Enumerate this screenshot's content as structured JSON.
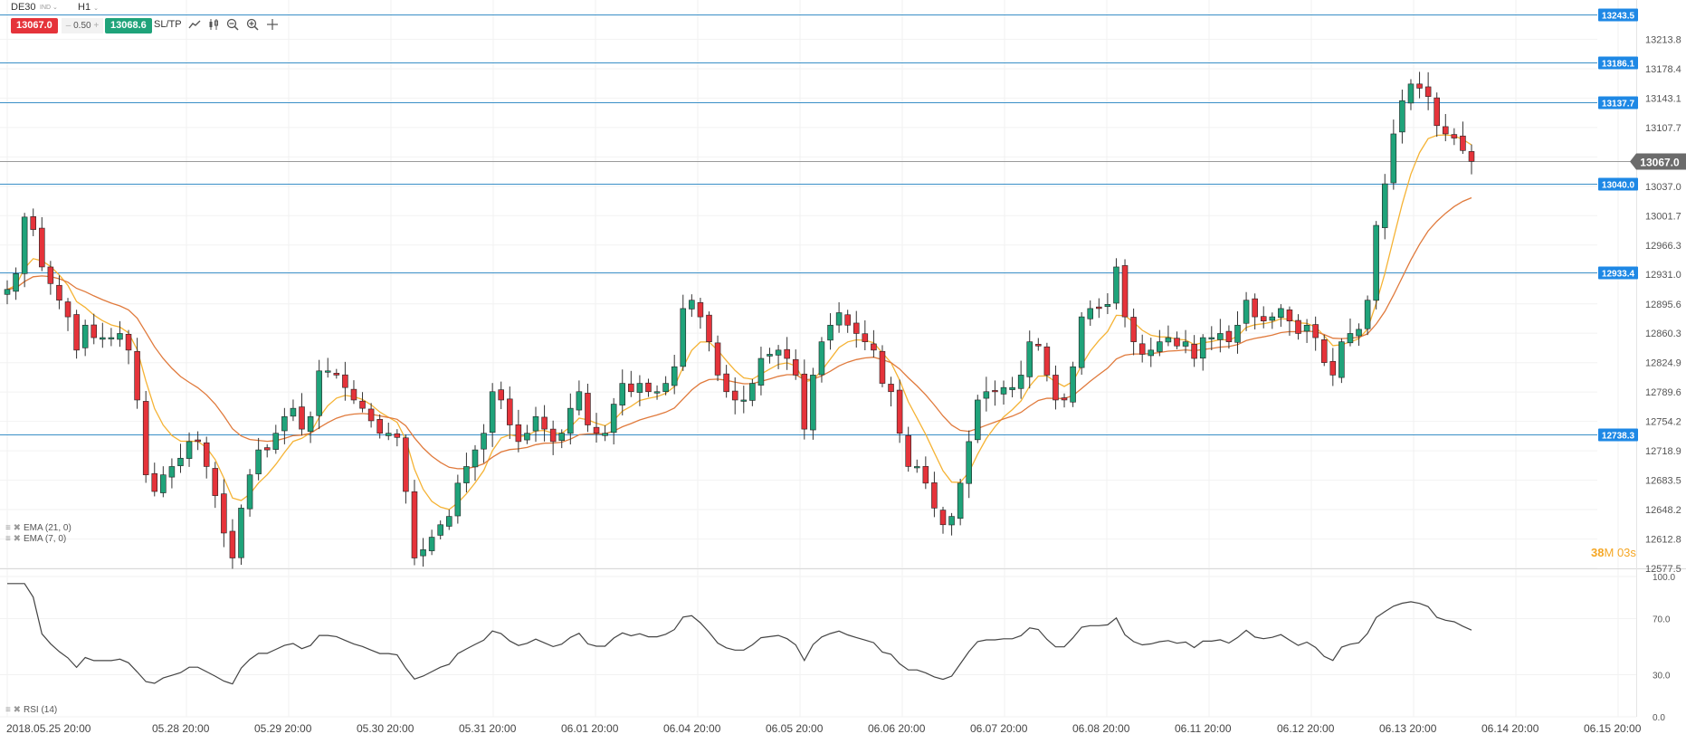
{
  "toolbar": {
    "symbol": "DE30",
    "symbol_type": "IND",
    "timeframe": "H1",
    "sell_price": "13067.0",
    "lot_minus": "–",
    "lot_value": "0.50",
    "lot_plus": "+",
    "buy_price": "13068.6",
    "sltp_label": "SL/TP",
    "tools": [
      "line-tool-icon",
      "candlestick-icon",
      "zoom-out-icon",
      "zoom-in-icon",
      "crosshair-icon"
    ]
  },
  "indicators": {
    "ema21": "EMA (21, 0)",
    "ema7": "EMA (7, 0)",
    "rsi": "RSI (14)"
  },
  "countdown": {
    "minutes": "38",
    "m": "M",
    "seconds": "03s"
  },
  "colors": {
    "bull": "#1fa37a",
    "bear": "#e5333a",
    "level_line": "#3a8fc7",
    "level_tag": "#1e88e5",
    "ema_fast": "#f5b335",
    "ema_slow": "#e07a3c",
    "rsi_line": "#444444",
    "current_price_tag": "#6b6b6b",
    "countdown": "#f5a623"
  },
  "chart_data": {
    "type": "candlestick",
    "symbol": "DE30",
    "interval": "H1",
    "y_range": [
      12577.5,
      13248
    ],
    "y_ticks": [
      "13213.8",
      "13178.4",
      "13143.1",
      "13107.7",
      "13072.4",
      "13037.0",
      "13001.7",
      "12966.3",
      "12931.0",
      "12895.6",
      "12860.3",
      "12824.9",
      "12789.6",
      "12754.2",
      "12718.9",
      "12683.5",
      "12648.2",
      "12612.8",
      "12577.5"
    ],
    "x_labels": [
      "2018.05.25 20:00",
      "05.28 20:00",
      "05.29 20:00",
      "05.30 20:00",
      "05.31 20:00",
      "06.01 20:00",
      "06.04 20:00",
      "06.05 20:00",
      "06.06 20:00",
      "06.07 20:00",
      "06.08 20:00",
      "06.11 20:00",
      "06.12 20:00",
      "06.13 20:00",
      "06.14 20:00",
      "06.15 20:00"
    ],
    "levels": [
      "13243.5",
      "13186.1",
      "13137.7",
      "13040.0",
      "12933.4",
      "12738.3"
    ],
    "current_price": "13067.0",
    "closes": [
      12913,
      12932,
      13000,
      12985,
      12940,
      12920,
      12900,
      12880,
      12840,
      12870,
      12855,
      12855,
      12855,
      12860,
      12840,
      12780,
      12690,
      12670,
      12690,
      12700,
      12710,
      12730,
      12730,
      12700,
      12665,
      12620,
      12590,
      12650,
      12690,
      12720,
      12720,
      12740,
      12760,
      12770,
      12745,
      12760,
      12815,
      12815,
      12810,
      12795,
      12780,
      12770,
      12755,
      12740,
      12740,
      12735,
      12670,
      12590,
      12600,
      12615,
      12630,
      12640,
      12680,
      12700,
      12720,
      12740,
      12790,
      12780,
      12750,
      12730,
      12740,
      12760,
      12745,
      12730,
      12740,
      12770,
      12790,
      12750,
      12740,
      12740,
      12775,
      12800,
      12790,
      12800,
      12790,
      12790,
      12800,
      12820,
      12890,
      12900,
      12880,
      12850,
      12810,
      12790,
      12780,
      12780,
      12800,
      12830,
      12835,
      12840,
      12830,
      12810,
      12745,
      12810,
      12850,
      12870,
      12885,
      12870,
      12860,
      12850,
      12840,
      12800,
      12790,
      12740,
      12700,
      12700,
      12680,
      12650,
      12630,
      12640,
      12680,
      12730,
      12780,
      12790,
      12790,
      12795,
      12795,
      12810,
      12850,
      12845,
      12810,
      12780,
      12780,
      12820,
      12880,
      12890,
      12890,
      12895,
      12940,
      12880,
      12850,
      12835,
      12840,
      12850,
      12855,
      12845,
      12850,
      12830,
      12855,
      12855,
      12860,
      12850,
      12870,
      12900,
      12880,
      12875,
      12880,
      12890,
      12875,
      12860,
      12870,
      12855,
      12825,
      12810,
      12850,
      12860,
      12865,
      12900,
      12990,
      13040,
      13100,
      13140,
      13160,
      13155,
      13145,
      13110,
      13100,
      13095,
      13080,
      13067
    ]
  }
}
